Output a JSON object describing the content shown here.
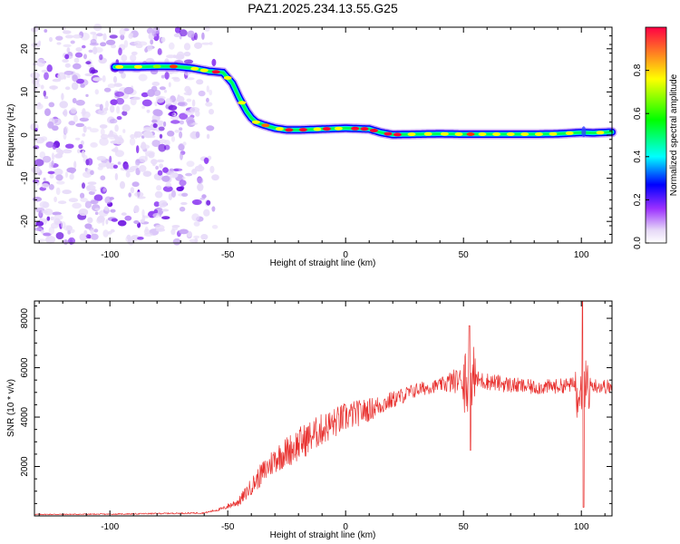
{
  "chart_data": [
    {
      "type": "heatmap",
      "title": "PAZ1.2025.234.13.55.G25",
      "xlabel": "Height of straight line (km)",
      "ylabel": "Frequency (Hz)",
      "xlim": [
        -132,
        113
      ],
      "ylim": [
        -25,
        25
      ],
      "xticks": [
        -100,
        -50,
        0,
        50,
        100
      ],
      "yticks": [
        20,
        10,
        0,
        -10,
        -20
      ],
      "colorbar": {
        "label": "Normalized spectral amplitude",
        "range": [
          0.0,
          1.0
        ],
        "ticks": [
          0.0,
          0.2,
          0.4,
          0.6,
          0.8
        ],
        "tick_labels": [
          "0.0",
          "0.2",
          "0.4",
          "0.6",
          "0.8"
        ],
        "colormap": [
          "#ffffff",
          "#e6d8f7",
          "#9b30ff",
          "#0000ff",
          "#00ffff",
          "#00ff00",
          "#ffff00",
          "#ff0000"
        ]
      },
      "ridge": {
        "x": [
          -98,
          -90,
          -80,
          -72,
          -65,
          -58,
          -52,
          -48,
          -45,
          -42,
          -40,
          -38,
          -35,
          -30,
          -25,
          -20,
          -15,
          -10,
          -5,
          0,
          5,
          10,
          15,
          20,
          30,
          40,
          50,
          60,
          70,
          80,
          90,
          100,
          105,
          113
        ],
        "freq": [
          15.8,
          15.8,
          15.9,
          15.9,
          15.5,
          14.8,
          14.5,
          12,
          8.5,
          5.5,
          4,
          3,
          2.4,
          1.6,
          1.2,
          1.2,
          1.3,
          1.4,
          1.5,
          1.6,
          1.5,
          1.4,
          0.6,
          0.1,
          0.2,
          0.3,
          0.2,
          0.2,
          0.2,
          0.2,
          0.3,
          0.6,
          0.5,
          0.7
        ]
      },
      "noise_region_km": [
        -132,
        -55
      ]
    },
    {
      "type": "line",
      "title": "",
      "xlabel": "Height of straight line (km)",
      "ylabel": "SNR (10 * v/v)",
      "xlim": [
        -132,
        113
      ],
      "ylim": [
        0,
        8700
      ],
      "xticks": [
        -100,
        -50,
        0,
        50,
        100
      ],
      "yticks": [
        2000,
        4000,
        6000,
        8000
      ],
      "color": "#e8312f",
      "trend": {
        "x": [
          -132,
          -100,
          -60,
          -52,
          -45,
          -40,
          -30,
          -20,
          -10,
          0,
          10,
          20,
          30,
          40,
          50,
          60,
          70,
          80,
          90,
          100,
          113
        ],
        "y": [
          60,
          70,
          120,
          300,
          600,
          1200,
          2300,
          2900,
          3500,
          4000,
          4300,
          4700,
          5100,
          5300,
          5550,
          5450,
          5300,
          5200,
          5250,
          5350,
          5200
        ]
      },
      "noise_amplitude": {
        "x": [
          -132,
          -60,
          -52,
          -45,
          -35,
          -20,
          0,
          20,
          40,
          45,
          60,
          80,
          113
        ],
        "amp": [
          20,
          30,
          70,
          200,
          500,
          700,
          600,
          350,
          250,
          500,
          350,
          300,
          300
        ]
      },
      "spikes": [
        {
          "x": 52.5,
          "y": 7700,
          "min": 2650
        },
        {
          "x": 100.5,
          "y": 8700,
          "min": 350
        }
      ]
    }
  ]
}
